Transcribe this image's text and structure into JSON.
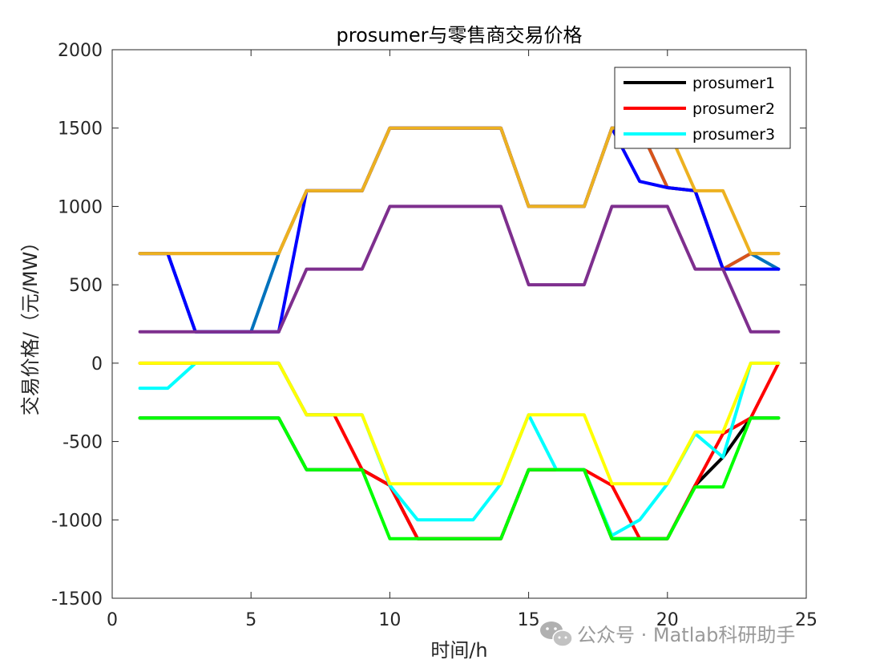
{
  "chart_data": {
    "type": "line",
    "title": "prosumer与零售商交易价格",
    "xlabel": "时间/h",
    "ylabel": "交易价格/（元/MW）",
    "xlim": [
      0,
      25
    ],
    "ylim": [
      -1500,
      2000
    ],
    "xticks": [
      0,
      5,
      10,
      15,
      20,
      25
    ],
    "yticks": [
      -1500,
      -1000,
      -500,
      0,
      500,
      1000,
      1500,
      2000
    ],
    "grid": false,
    "legend_position": "top-right",
    "x": [
      1,
      2,
      3,
      4,
      5,
      6,
      7,
      8,
      9,
      10,
      11,
      12,
      13,
      14,
      15,
      16,
      17,
      18,
      19,
      20,
      21,
      22,
      23,
      24
    ],
    "series": [
      {
        "name": "prosumer1",
        "color": "#000000",
        "legend": true,
        "values": [
          -350,
          -350,
          -350,
          -350,
          -350,
          -350,
          -680,
          -680,
          -680,
          -780,
          -1120,
          -1120,
          -1120,
          -1120,
          -680,
          -680,
          -680,
          -1120,
          -1120,
          -1120,
          -780,
          -600,
          -350,
          -350
        ]
      },
      {
        "name": "prosumer2",
        "color": "#ff0000",
        "legend": true,
        "values": [
          0,
          0,
          0,
          0,
          0,
          0,
          -330,
          -330,
          -680,
          -780,
          -1120,
          -1120,
          -1120,
          -1120,
          -680,
          -680,
          -680,
          -780,
          -1120,
          -1120,
          -780,
          -450,
          -350,
          0
        ]
      },
      {
        "name": "prosumer3",
        "color": "#00ffff",
        "legend": true,
        "values": [
          -160,
          -160,
          0,
          0,
          0,
          0,
          -330,
          -330,
          -330,
          -780,
          -1000,
          -1000,
          -1000,
          -770,
          -330,
          -680,
          -680,
          -1100,
          -1000,
          -770,
          -450,
          -600,
          0,
          0
        ]
      },
      {
        "name": "",
        "color": "#0072bd",
        "legend": false,
        "values": [
          700,
          700,
          200,
          200,
          200,
          700,
          1100,
          1100,
          1100,
          1500,
          1500,
          1500,
          1500,
          1500,
          1000,
          1000,
          1000,
          1500,
          1500,
          1120,
          1100,
          600,
          700,
          600
        ]
      },
      {
        "name": "",
        "color": "#d95319",
        "legend": false,
        "values": [
          700,
          700,
          700,
          700,
          700,
          700,
          1100,
          1100,
          1100,
          1500,
          1500,
          1500,
          1500,
          1500,
          1000,
          1000,
          1000,
          1500,
          1500,
          1120,
          1100,
          600,
          700,
          700
        ]
      },
      {
        "name": "",
        "color": "#0000ff",
        "legend": false,
        "values": [
          700,
          700,
          200,
          200,
          200,
          200,
          1100,
          1100,
          1100,
          1500,
          1500,
          1500,
          1500,
          1500,
          1000,
          1000,
          1000,
          1500,
          1160,
          1120,
          1100,
          600,
          600,
          600
        ]
      },
      {
        "name": "",
        "color": "#edb120",
        "legend": false,
        "values": [
          700,
          700,
          700,
          700,
          700,
          700,
          1100,
          1100,
          1100,
          1500,
          1500,
          1500,
          1500,
          1500,
          1000,
          1000,
          1000,
          1500,
          1500,
          1500,
          1100,
          1100,
          700,
          700
        ]
      },
      {
        "name": "",
        "color": "#7e2f8e",
        "legend": false,
        "values": [
          200,
          200,
          200,
          200,
          200,
          200,
          600,
          600,
          600,
          1000,
          1000,
          1000,
          1000,
          1000,
          500,
          500,
          500,
          1000,
          1000,
          1000,
          600,
          600,
          200,
          200
        ]
      },
      {
        "name": "",
        "color": "#00ff00",
        "legend": false,
        "values": [
          -350,
          -350,
          -350,
          -350,
          -350,
          -350,
          -680,
          -680,
          -680,
          -1120,
          -1120,
          -1120,
          -1120,
          -1120,
          -680,
          -680,
          -680,
          -1120,
          -1120,
          -1120,
          -790,
          -790,
          -350,
          -350
        ]
      },
      {
        "name": "",
        "color": "#ffff00",
        "legend": false,
        "values": [
          0,
          0,
          0,
          0,
          0,
          0,
          -330,
          -330,
          -330,
          -770,
          -770,
          -770,
          -770,
          -770,
          -330,
          -330,
          -330,
          -770,
          -770,
          -770,
          -440,
          -440,
          0,
          0
        ]
      }
    ]
  },
  "watermark": {
    "text": "公众号 · Matlab科研助手",
    "icon": "wechat-icon"
  }
}
